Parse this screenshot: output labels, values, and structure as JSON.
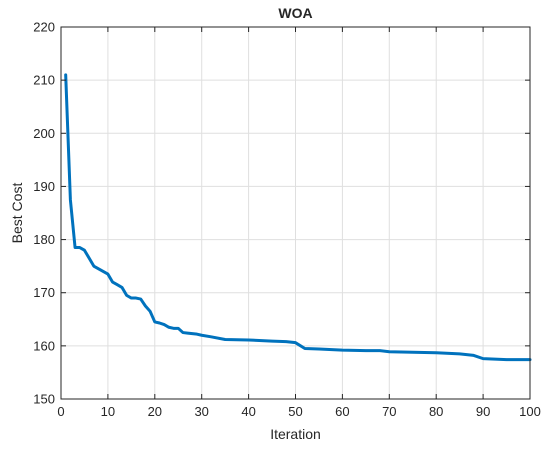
{
  "chart_data": {
    "type": "line",
    "title": "WOA",
    "xlabel": "Iteration",
    "ylabel": "Best Cost",
    "xlim": [
      0,
      100
    ],
    "ylim": [
      150,
      220
    ],
    "xticks": [
      0,
      10,
      20,
      30,
      40,
      50,
      60,
      70,
      80,
      90,
      100
    ],
    "yticks": [
      150,
      160,
      170,
      180,
      190,
      200,
      210,
      220
    ],
    "grid": true,
    "line_color": "#0072BD",
    "series": [
      {
        "x": [
          1,
          2,
          3,
          4,
          5,
          6,
          7,
          8,
          9,
          10,
          11,
          12,
          13,
          14,
          15,
          16,
          17,
          18,
          19,
          20,
          21,
          22,
          23,
          24,
          25,
          26,
          27,
          28,
          29,
          30,
          32,
          35,
          40,
          45,
          48,
          50,
          52,
          55,
          60,
          65,
          68,
          70,
          75,
          80,
          85,
          88,
          90,
          95,
          100
        ],
        "y": [
          211,
          187.5,
          178.5,
          178.5,
          178,
          176.5,
          175,
          174.5,
          174,
          173.5,
          172,
          171.5,
          171,
          169.5,
          169,
          169,
          168.8,
          167.5,
          166.5,
          164.5,
          164.3,
          164,
          163.5,
          163.3,
          163.3,
          162.5,
          162.4,
          162.3,
          162.2,
          162,
          161.7,
          161.2,
          161.1,
          160.9,
          160.8,
          160.6,
          159.5,
          159.4,
          159.2,
          159.1,
          159.1,
          158.9,
          158.8,
          158.7,
          158.5,
          158.2,
          157.6,
          157.4,
          157.4
        ]
      }
    ]
  }
}
